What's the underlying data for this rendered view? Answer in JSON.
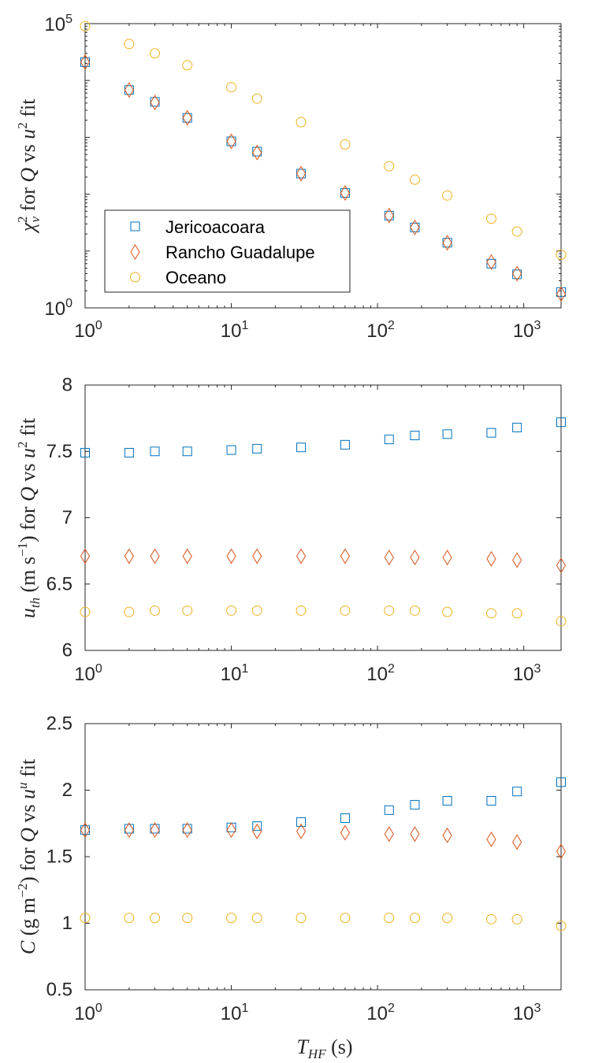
{
  "colors": {
    "Jericoacoara": "#0072BD",
    "Rancho Guadalupe": "#D95319",
    "Oceano": "#EDB120",
    "axis": "#262626"
  },
  "markers": {
    "Jericoacoara": "square",
    "Rancho Guadalupe": "diamond",
    "Oceano": "circle"
  },
  "xlabel": {
    "main": "T",
    "sub": "HF",
    "rest": " (s)"
  },
  "chart_data": [
    {
      "type": "scatter",
      "xscale": "log",
      "yscale": "log",
      "xlim": [
        1,
        1800
      ],
      "ylim": [
        1,
        100000
      ],
      "ylabel": {
        "chi": "χ",
        "sup": "2",
        "sub": "ν",
        "rest1": " for ",
        "q": "Q",
        "rest2": " vs ",
        "u": "u",
        "usup": "2",
        "rest3": " fit"
      },
      "xticks": [
        {
          "value": 1,
          "base": "10",
          "exp": "0"
        },
        {
          "value": 10,
          "base": "10",
          "exp": "1"
        },
        {
          "value": 100,
          "base": "10",
          "exp": "2"
        },
        {
          "value": 1000,
          "base": "10",
          "exp": "3"
        }
      ],
      "yticks": [
        {
          "value": 1,
          "base": "10",
          "exp": "0"
        },
        {
          "value": 100000,
          "base": "10",
          "exp": "5"
        }
      ],
      "legend": {
        "position": "lower-left",
        "entries": [
          "Jericoacoara",
          "Rancho Guadalupe",
          "Oceano"
        ]
      },
      "x": [
        1,
        2,
        3,
        5,
        10,
        15,
        30,
        60,
        120,
        180,
        300,
        600,
        900,
        1800
      ],
      "series": [
        {
          "name": "Jericoacoara",
          "values": [
            21000,
            6800,
            4200,
            2200,
            850,
            560,
            230,
            105,
            42,
            26,
            14,
            6,
            3.9,
            1.9
          ]
        },
        {
          "name": "Rancho Guadalupe",
          "values": [
            21000,
            6800,
            4100,
            2200,
            850,
            540,
            230,
            105,
            42,
            26,
            14,
            6.4,
            4.0,
            1.75
          ]
        },
        {
          "name": "Oceano",
          "values": [
            90000,
            44000,
            30000,
            18500,
            7600,
            4800,
            1850,
            750,
            310,
            180,
            95,
            37,
            22,
            8.6
          ]
        }
      ]
    },
    {
      "type": "scatter",
      "xscale": "log",
      "yscale": "linear",
      "xlim": [
        1,
        1800
      ],
      "ylim": [
        6,
        8
      ],
      "ylabel": {
        "u": "u",
        "sub": "th",
        "rest1": " (m s",
        "sup": "−1",
        "rest2": ") for ",
        "q": "Q",
        "rest3": " vs ",
        "u2": "u",
        "usup": "2",
        "rest4": " fit"
      },
      "xticks": [
        {
          "value": 1,
          "base": "10",
          "exp": "0"
        },
        {
          "value": 10,
          "base": "10",
          "exp": "1"
        },
        {
          "value": 100,
          "base": "10",
          "exp": "2"
        },
        {
          "value": 1000,
          "base": "10",
          "exp": "3"
        }
      ],
      "yticks": [
        {
          "value": 6,
          "label": "6"
        },
        {
          "value": 6.5,
          "label": "6.5"
        },
        {
          "value": 7,
          "label": "7"
        },
        {
          "value": 7.5,
          "label": "7.5"
        },
        {
          "value": 8,
          "label": "8"
        }
      ],
      "x": [
        1,
        2,
        3,
        5,
        10,
        15,
        30,
        60,
        120,
        180,
        300,
        600,
        900,
        1800
      ],
      "series": [
        {
          "name": "Jericoacoara",
          "values": [
            7.49,
            7.49,
            7.5,
            7.5,
            7.51,
            7.52,
            7.53,
            7.55,
            7.59,
            7.62,
            7.63,
            7.64,
            7.68,
            7.72
          ]
        },
        {
          "name": "Rancho Guadalupe",
          "values": [
            6.71,
            6.71,
            6.71,
            6.71,
            6.71,
            6.71,
            6.71,
            6.71,
            6.7,
            6.7,
            6.7,
            6.69,
            6.68,
            6.64
          ]
        },
        {
          "name": "Oceano",
          "values": [
            6.29,
            6.29,
            6.3,
            6.3,
            6.3,
            6.3,
            6.3,
            6.3,
            6.3,
            6.3,
            6.29,
            6.28,
            6.28,
            6.22
          ]
        }
      ]
    },
    {
      "type": "scatter",
      "xscale": "log",
      "yscale": "linear",
      "xlim": [
        1,
        1800
      ],
      "ylim": [
        0.5,
        2.5
      ],
      "ylabel": {
        "c": "C",
        "rest1": " (g m",
        "sup": "−2",
        "rest2": ") for ",
        "q": "Q",
        "rest3": " vs ",
        "u": "u",
        "usup": "u",
        "rest4": " fit"
      },
      "xticks": [
        {
          "value": 1,
          "base": "10",
          "exp": "0"
        },
        {
          "value": 10,
          "base": "10",
          "exp": "1"
        },
        {
          "value": 100,
          "base": "10",
          "exp": "2"
        },
        {
          "value": 1000,
          "base": "10",
          "exp": "3"
        }
      ],
      "yticks": [
        {
          "value": 0.5,
          "label": "0.5"
        },
        {
          "value": 1,
          "label": "1"
        },
        {
          "value": 1.5,
          "label": "1.5"
        },
        {
          "value": 2,
          "label": "2"
        },
        {
          "value": 2.5,
          "label": "2.5"
        }
      ],
      "x": [
        1,
        2,
        3,
        5,
        10,
        15,
        30,
        60,
        120,
        180,
        300,
        600,
        900,
        1800
      ],
      "series": [
        {
          "name": "Jericoacoara",
          "values": [
            1.7,
            1.71,
            1.71,
            1.71,
            1.72,
            1.73,
            1.76,
            1.79,
            1.85,
            1.89,
            1.92,
            1.92,
            1.99,
            2.06
          ]
        },
        {
          "name": "Rancho Guadalupe",
          "values": [
            1.7,
            1.7,
            1.7,
            1.7,
            1.7,
            1.69,
            1.69,
            1.68,
            1.67,
            1.67,
            1.66,
            1.63,
            1.61,
            1.54
          ]
        },
        {
          "name": "Oceano",
          "values": [
            1.04,
            1.04,
            1.04,
            1.04,
            1.04,
            1.04,
            1.04,
            1.04,
            1.04,
            1.04,
            1.04,
            1.03,
            1.03,
            0.98
          ]
        }
      ]
    }
  ]
}
